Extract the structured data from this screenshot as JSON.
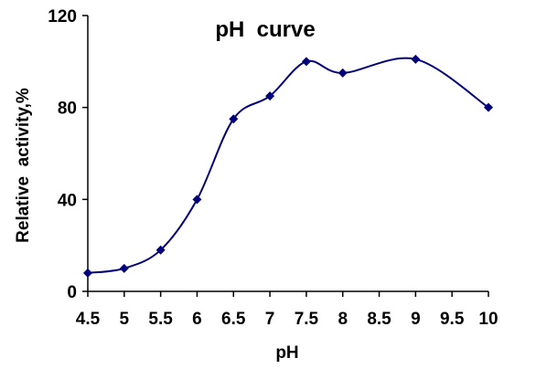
{
  "chart_data": {
    "type": "line",
    "title": "pH  curve",
    "xlabel": "pH",
    "ylabel": "Relative  activity,%",
    "x_ticks": [
      "4.5",
      "5",
      "5.5",
      "6",
      "6.5",
      "7",
      "7.5",
      "8",
      "8.5",
      "9",
      "9.5",
      "10"
    ],
    "y_ticks": [
      "0",
      "40",
      "80",
      "120"
    ],
    "xlim": [
      4.5,
      10
    ],
    "ylim": [
      0,
      120
    ],
    "grid": false,
    "smooth": true,
    "series": [
      {
        "x": [
          4.5,
          5,
          5.5,
          6,
          6.5,
          7,
          7.5,
          8,
          9,
          10
        ],
        "y": [
          8,
          10,
          18,
          40,
          75,
          85,
          100,
          95,
          101,
          80
        ]
      }
    ],
    "colors": {
      "line": "#00007a",
      "marker": "#00007a",
      "axis": "#000000"
    }
  }
}
